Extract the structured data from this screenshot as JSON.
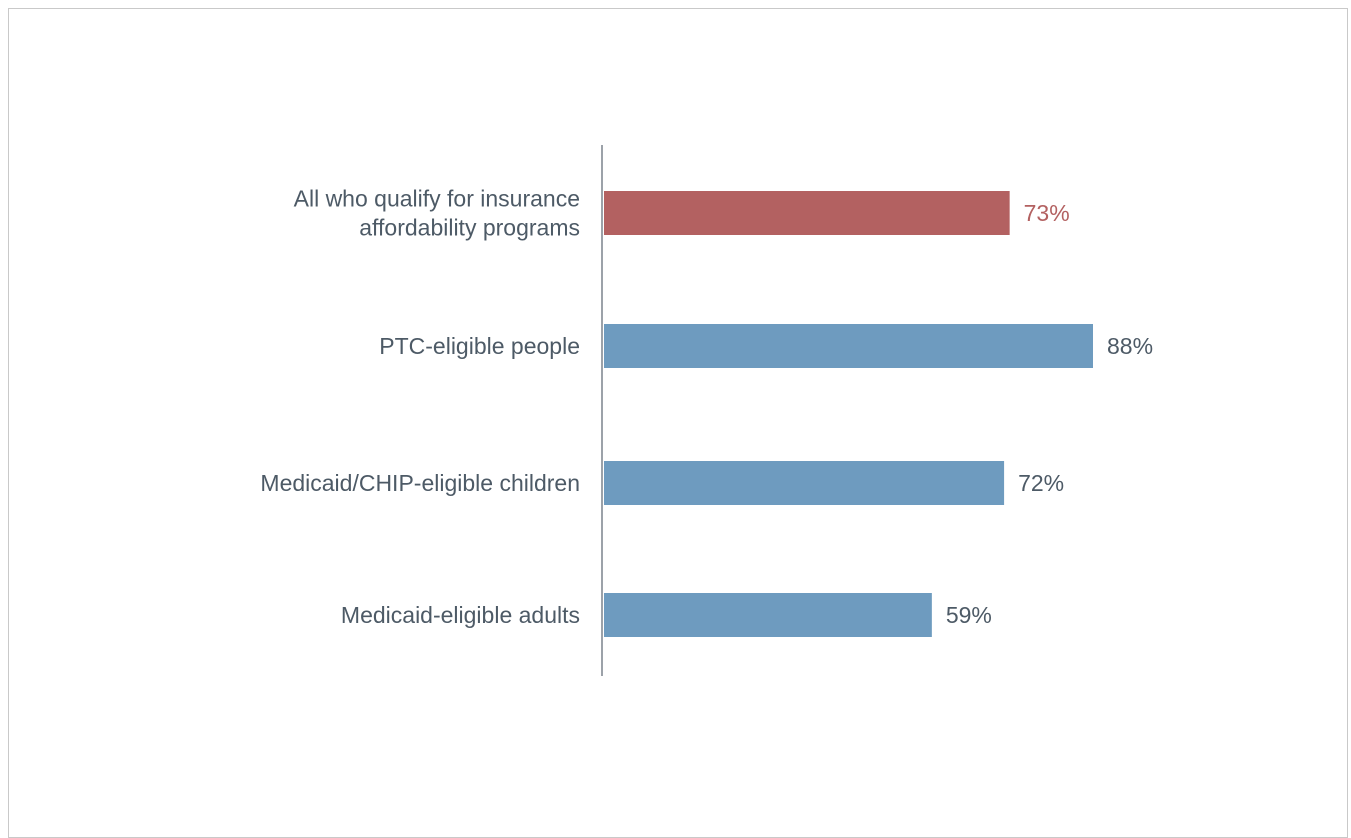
{
  "chart_data": {
    "type": "bar",
    "orientation": "horizontal",
    "title": "",
    "xlabel": "",
    "ylabel": "",
    "grid": false,
    "legend": "none",
    "xlim": [
      0,
      100
    ],
    "categories": [
      [
        "All who qualify for insurance",
        "affordability programs"
      ],
      [
        "PTC-eligible people"
      ],
      [
        "Medicaid/CHIP-eligible children"
      ],
      [
        "Medicaid-eligible adults"
      ]
    ],
    "values": [
      73,
      88,
      72,
      59
    ],
    "value_labels": [
      "73%",
      "88%",
      "72%",
      "59%"
    ],
    "bar_colors": [
      "#b36161",
      "#6e9bbf",
      "#6e9bbf",
      "#6e9bbf"
    ],
    "label_colors": [
      "#b36161",
      "#4d5a66",
      "#4d5a66",
      "#4d5a66"
    ],
    "category_label_color": "#4d5a66",
    "axis_color": "#5a6570"
  }
}
